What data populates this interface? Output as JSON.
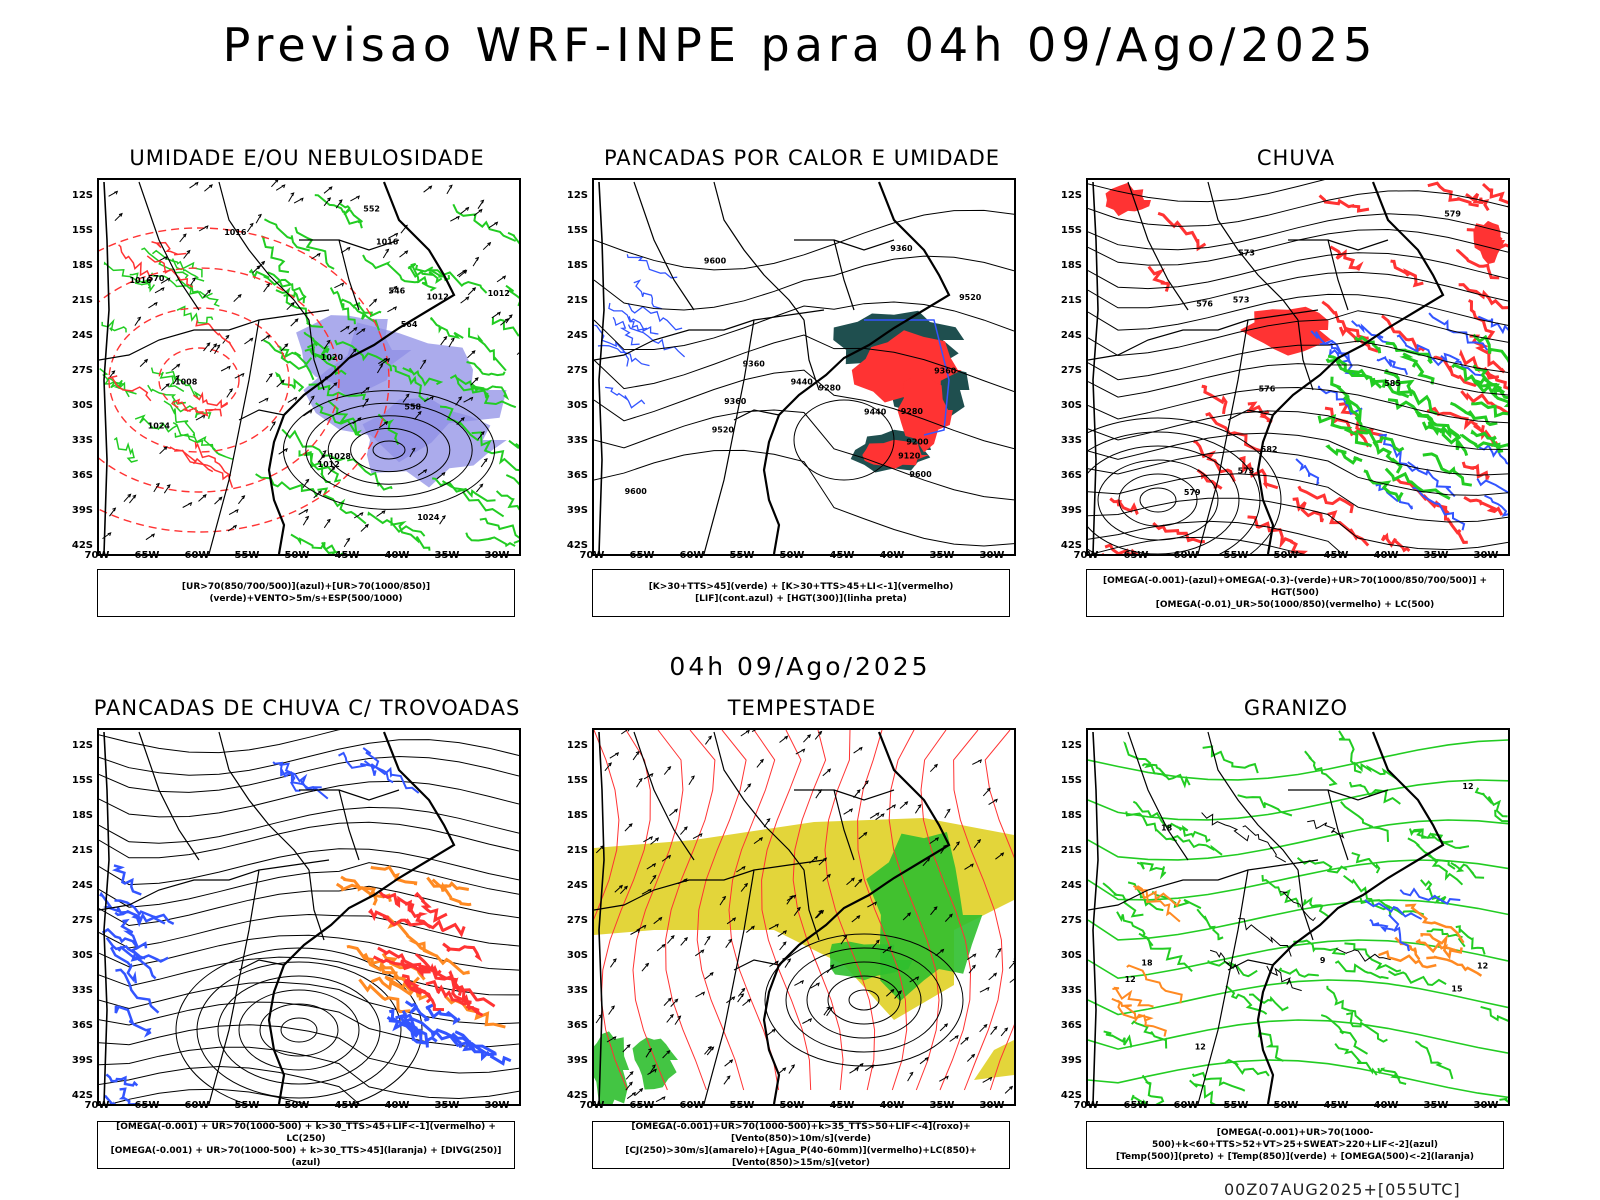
{
  "title": "Previsao WRF-INPE  para 04h 09/Ago/2025",
  "mid_date": "04h 09/Ago/2025",
  "footer": "00Z07AUG2025+[055UTC]",
  "lat_labels": [
    "12S",
    "15S",
    "18S",
    "21S",
    "24S",
    "27S",
    "30S",
    "33S",
    "36S",
    "39S",
    "42S"
  ],
  "lon_labels": [
    "70W",
    "65W",
    "60W",
    "55W",
    "50W",
    "45W",
    "40W",
    "35W",
    "30W"
  ],
  "colors": {
    "green": "#22cc22",
    "red": "#ff3333",
    "blue": "#3355ff",
    "lavender": "#8f8fe6",
    "yellow": "#e3d53a",
    "orange": "#ff8a22",
    "teal": "#1f4f4f"
  },
  "panels": [
    {
      "title": "UMIDADE E/OU NEBULOSIDADE",
      "legend": [
        "[UR>70(850/700/500)](azul)+[UR>70(1000/850)](verde)+VENTO>5m/s+ESP(500/1000)"
      ],
      "contour_labels": [
        "1016",
        "1012",
        "1020",
        "1024",
        "1016",
        "1012",
        "1008",
        "1012",
        "1028",
        "1016",
        "1024",
        "570",
        "564",
        "558",
        "552",
        "546"
      ]
    },
    {
      "title": "PANCADAS POR CALOR E UMIDADE",
      "legend": [
        "[K>30+TTS>45](verde) + [K>30+TTS>45+LI<-1](vermelho)",
        "[LIF](cont.azul) + [HGT(300)](linha preta)"
      ],
      "contour_labels": [
        "9600",
        "9600",
        "9600",
        "9520",
        "9520",
        "9440",
        "9440",
        "9360",
        "9280",
        "9200",
        "9120",
        "9360",
        "9280",
        "9360",
        "9360"
      ]
    },
    {
      "title": "CHUVA",
      "legend": [
        "[OMEGA(-0.001)-(azul)+OMEGA(-0.3)-(verde)+UR>70(1000/850/700/500)] + HGT(500)",
        "[OMEGA(-0.01)_UR>50(1000/850)(vermelho) + LC(500)"
      ],
      "contour_labels": [
        "582",
        "576",
        "573",
        "579",
        "576",
        "573",
        "585",
        "573",
        "579"
      ]
    },
    {
      "title": "PANCADAS DE CHUVA C/ TROVOADAS",
      "legend": [
        "[OMEGA(-0.001) + UR>70(1000-500) + k>30_TTS>45+LIF<-1](vermelho) + LC(250)",
        "[OMEGA(-0.001) + UR>70(1000-500) + k>30_TTS>45](laranja) + [DIVG(250)](azul)"
      ],
      "contour_labels": []
    },
    {
      "title": "TEMPESTADE",
      "legend": [
        "[OMEGA(-0.001)+UR>70(1000-500)+k>35_TTS>50+LIF<-4](roxo)+[Vento(850)>10m/s](verde)",
        "[CJ(250)>30m/s](amarelo)+[Agua_P(40-60mm)](vermelho)+LC(850)+[Vento(850)>15m/s](vetor)"
      ],
      "contour_labels": []
    },
    {
      "title": "GRANIZO",
      "legend": [
        "[OMEGA(-0.001)+UR>70(1000-500)+k<60+TTS>52+VT>25+SWEAT>220+LIF<-2](azul)",
        "[Temp(500)](preto) + [Temp(850)](verde) + [OMEGA(500)<-2](laranja)"
      ],
      "contour_labels": [
        "12",
        "12",
        "9",
        "12",
        "15",
        "18",
        "18",
        "12"
      ]
    }
  ]
}
